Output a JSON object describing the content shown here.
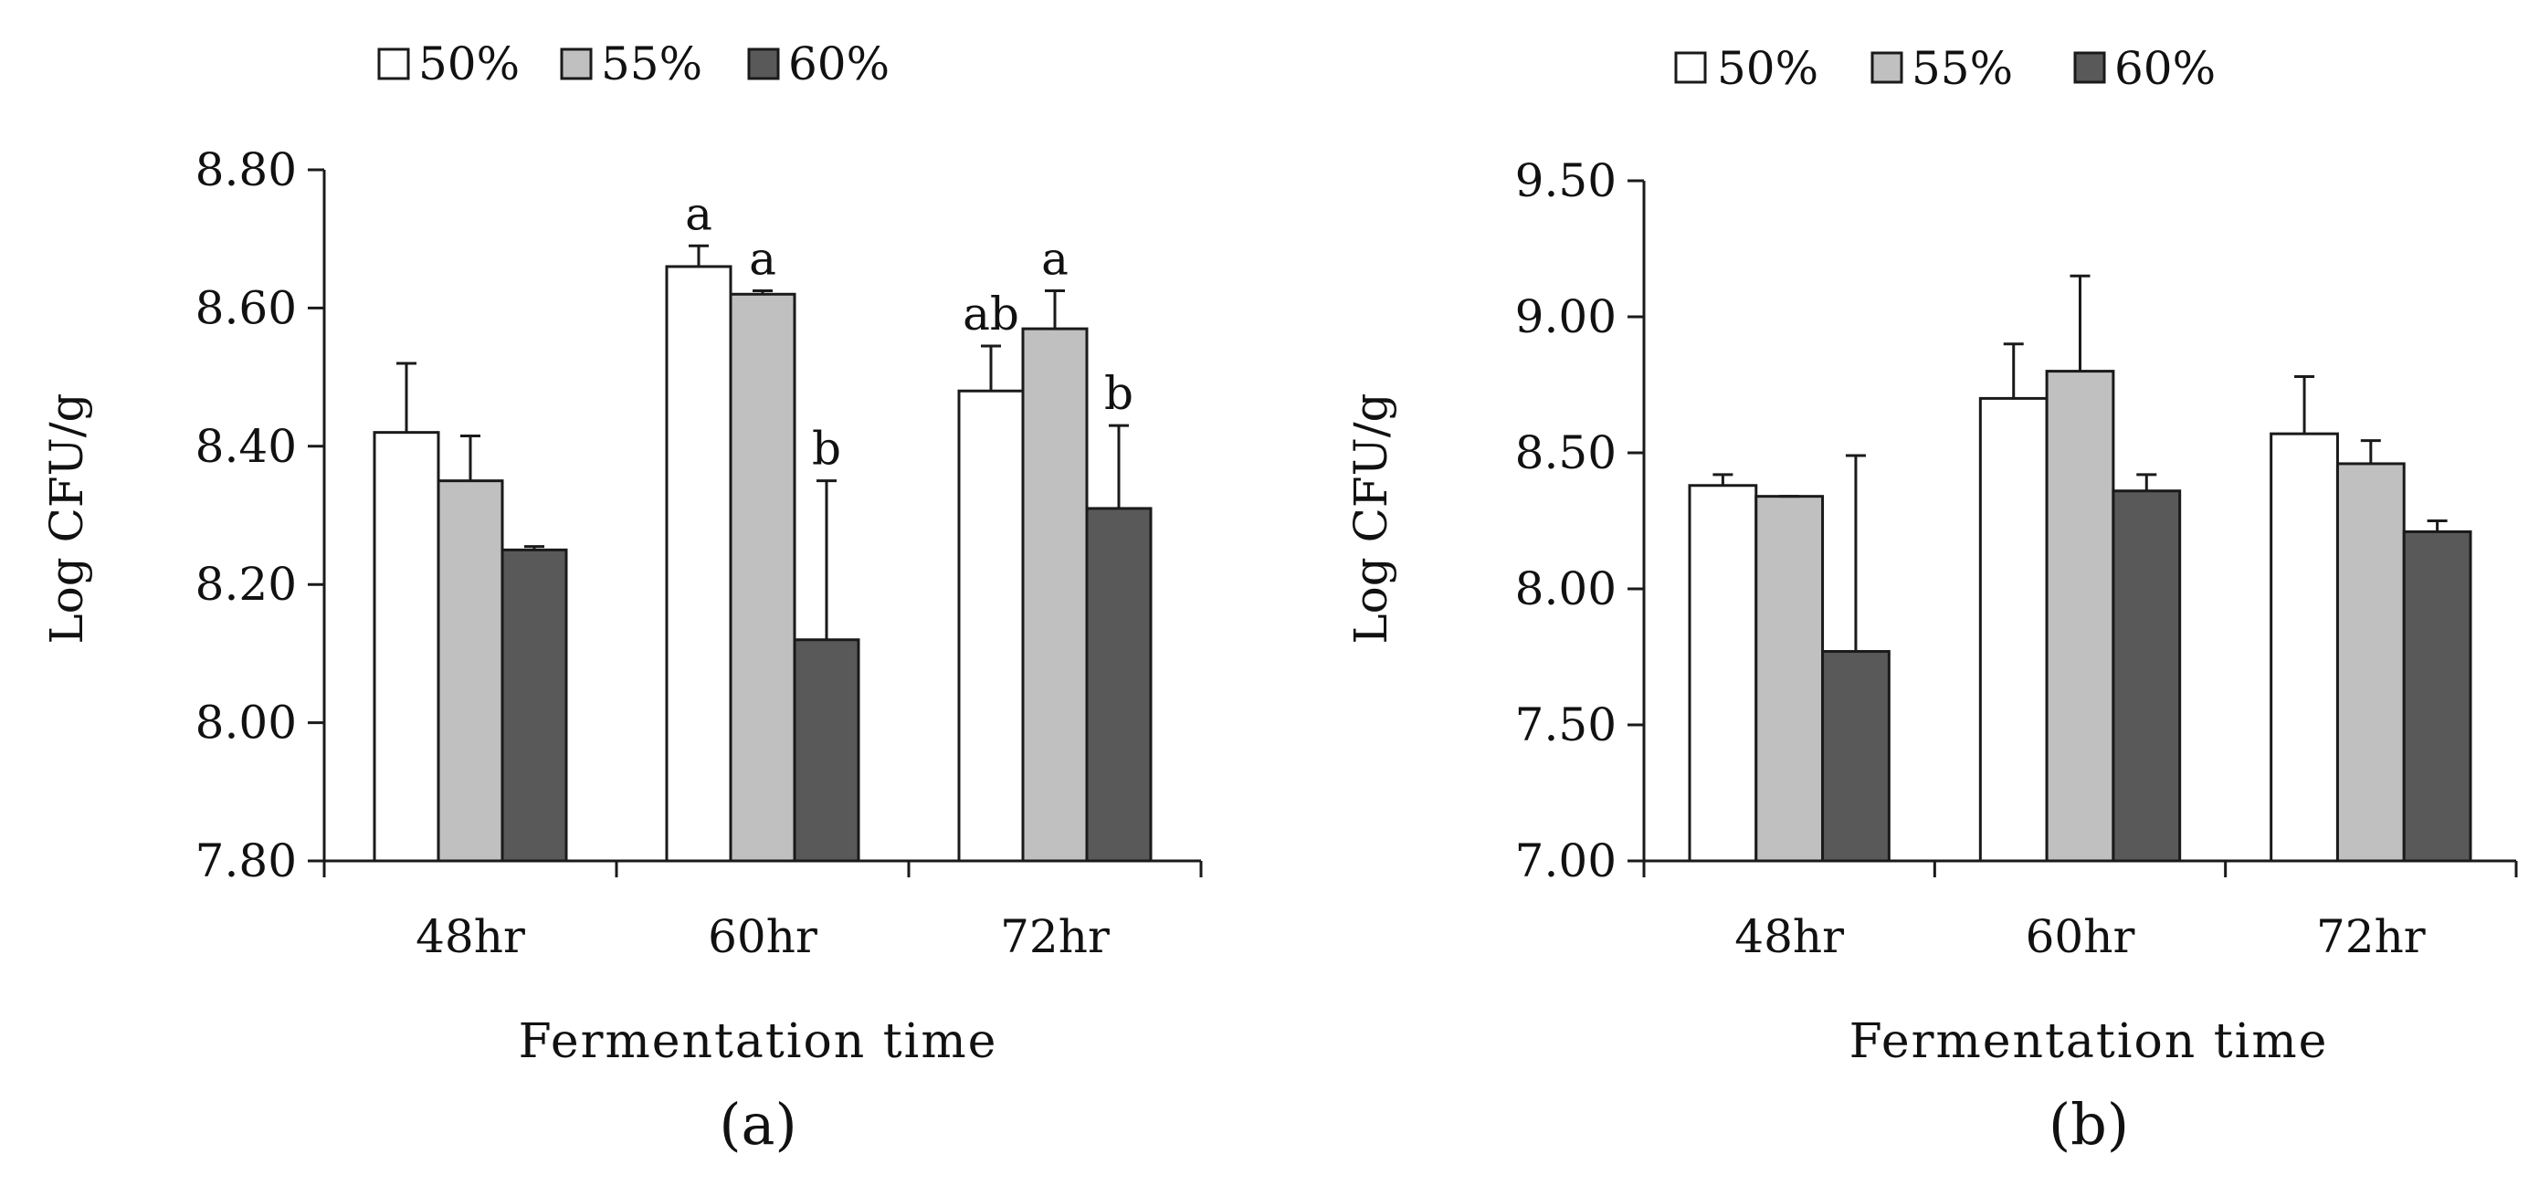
{
  "chart_data": [
    {
      "type": "bar",
      "panel_label": "(a)",
      "xlabel": "Fermentation time",
      "ylabel": "Log CFU/g",
      "categories": [
        "48hr",
        "60hr",
        "72hr"
      ],
      "ylim": [
        7.8,
        8.8
      ],
      "yticks": [
        "7.80",
        "8.00",
        "8.20",
        "8.40",
        "8.60",
        "8.80"
      ],
      "ytick_values": [
        7.8,
        8.0,
        8.2,
        8.4,
        8.6,
        8.8
      ],
      "legend_position": "top-left",
      "series": [
        {
          "name": "50%",
          "color": "#ffffff",
          "values": [
            8.42,
            8.66,
            8.48
          ],
          "errors": [
            0.1,
            0.03,
            0.065
          ],
          "labels": [
            "",
            "a",
            "ab"
          ]
        },
        {
          "name": "55%",
          "color": "#c0c0c0",
          "values": [
            8.35,
            8.62,
            8.57
          ],
          "errors": [
            0.065,
            0.005,
            0.055
          ],
          "labels": [
            "",
            "a",
            "a"
          ]
        },
        {
          "name": "60%",
          "color": "#595959",
          "values": [
            8.25,
            8.12,
            8.31
          ],
          "errors": [
            0.005,
            0.23,
            0.12
          ],
          "labels": [
            "",
            "b",
            "b"
          ]
        }
      ]
    },
    {
      "type": "bar",
      "panel_label": "(b)",
      "xlabel": "Fermentation time",
      "ylabel": "Log CFU/g",
      "categories": [
        "48hr",
        "60hr",
        "72hr"
      ],
      "ylim": [
        7.0,
        9.5
      ],
      "yticks": [
        "7.00",
        "7.50",
        "8.00",
        "8.50",
        "9.00",
        "9.50"
      ],
      "ytick_values": [
        7.0,
        7.5,
        8.0,
        8.5,
        9.0,
        9.5
      ],
      "legend_position": "top-center",
      "series": [
        {
          "name": "50%",
          "color": "#ffffff",
          "values": [
            8.38,
            8.7,
            8.57
          ],
          "errors": [
            0.04,
            0.2,
            0.21
          ],
          "labels": [
            "",
            "",
            ""
          ]
        },
        {
          "name": "55%",
          "color": "#c0c0c0",
          "values": [
            8.34,
            8.8,
            8.46
          ],
          "errors": [
            0.0,
            0.35,
            0.085
          ],
          "labels": [
            "",
            "",
            ""
          ]
        },
        {
          "name": "60%",
          "color": "#595959",
          "values": [
            7.77,
            8.36,
            8.21
          ],
          "errors": [
            0.72,
            0.06,
            0.04
          ],
          "labels": [
            "",
            "",
            ""
          ]
        }
      ]
    }
  ]
}
